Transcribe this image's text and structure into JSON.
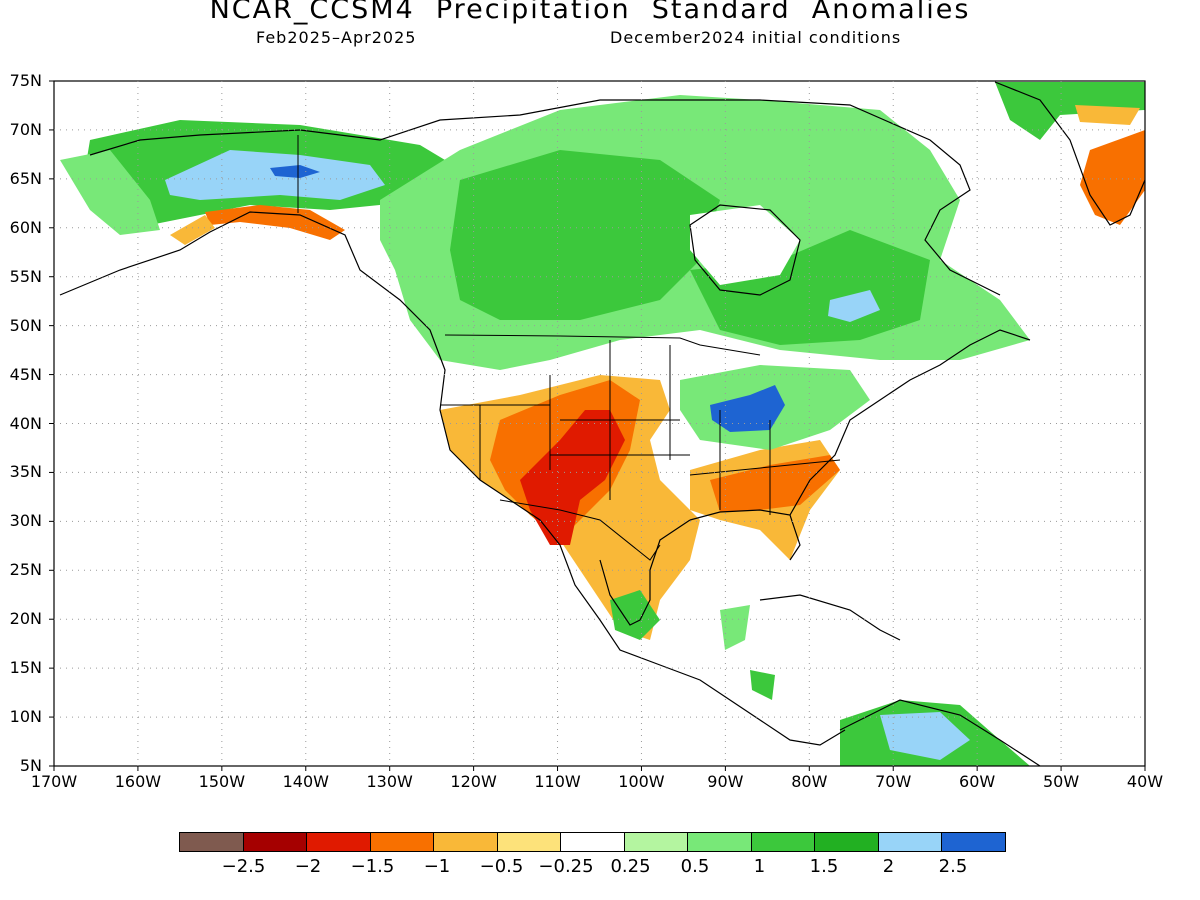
{
  "header": {
    "title": "NCAR_CCSM4  Precipitation  Standard  Anomalies",
    "period": "Feb2025–Apr2025",
    "initial_conditions": "December2024 initial conditions"
  },
  "map": {
    "lon_range": [
      -170,
      -40
    ],
    "lat_range": [
      5,
      75
    ],
    "lat_labels": [
      "75N",
      "70N",
      "65N",
      "60N",
      "55N",
      "50N",
      "45N",
      "40N",
      "35N",
      "30N",
      "25N",
      "20N",
      "15N",
      "10N",
      "5N"
    ],
    "lon_labels": [
      "170W",
      "160W",
      "150W",
      "140W",
      "130W",
      "120W",
      "110W",
      "100W",
      "90W",
      "80W",
      "70W",
      "60W",
      "50W",
      "40W"
    ],
    "grid": "dotted, every 5° latitude and 10° longitude"
  },
  "legend": {
    "colors": [
      "#7f5a4f",
      "#a50000",
      "#e01a00",
      "#f87000",
      "#f9b838",
      "#fde27a",
      "#ffffff",
      "#b4f5a0",
      "#78e878",
      "#3cc83c",
      "#22b022",
      "#98d4f8",
      "#1e64d2"
    ],
    "labels": [
      "−2.5",
      "−2",
      "−1.5",
      "−1",
      "−0.5",
      "−0.25",
      "0.25",
      "0.5",
      "1",
      "1.5",
      "2",
      "2.5"
    ]
  },
  "colors": {
    "land_outline": "#000000",
    "ocean": "#ffffff"
  }
}
